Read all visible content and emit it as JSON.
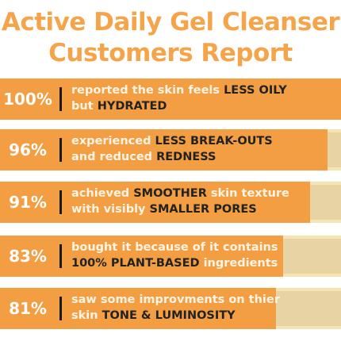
{
  "title_line1": "Active Daily Gel Cleanser",
  "title_line2": "Customers Report",
  "colors": {
    "title": "#f5a44a",
    "bar_fill": "#f39e43",
    "bar_remainder": "#e7d3a4",
    "highlight_text": "#222222",
    "plain_text": "#fff4e4"
  },
  "stats": [
    {
      "percent": "100%",
      "fraction": 1.0,
      "line1": [
        "reported the skin feels ",
        "LESS OILY"
      ],
      "line2": [
        "but ",
        "HYDRATED"
      ]
    },
    {
      "percent": "96%",
      "fraction": 0.96,
      "line1": [
        "experienced ",
        "LESS BREAK-OUTS"
      ],
      "line2": [
        "and reduced ",
        "REDNESS"
      ]
    },
    {
      "percent": "91%",
      "fraction": 0.91,
      "line1": [
        "achieved ",
        "SMOOTHER",
        " skin texture"
      ],
      "line2": [
        "with visibly ",
        "SMALLER PORES"
      ]
    },
    {
      "percent": "83%",
      "fraction": 0.83,
      "line1": [
        "bought it because of it contains"
      ],
      "line2": [
        "100% PLANT-BASED",
        " ingredients"
      ]
    },
    {
      "percent": "81%",
      "fraction": 0.81,
      "line1": [
        "saw some improvments on thier"
      ],
      "line2": [
        "skin ",
        "TONE & LUMINOSITY"
      ]
    }
  ]
}
